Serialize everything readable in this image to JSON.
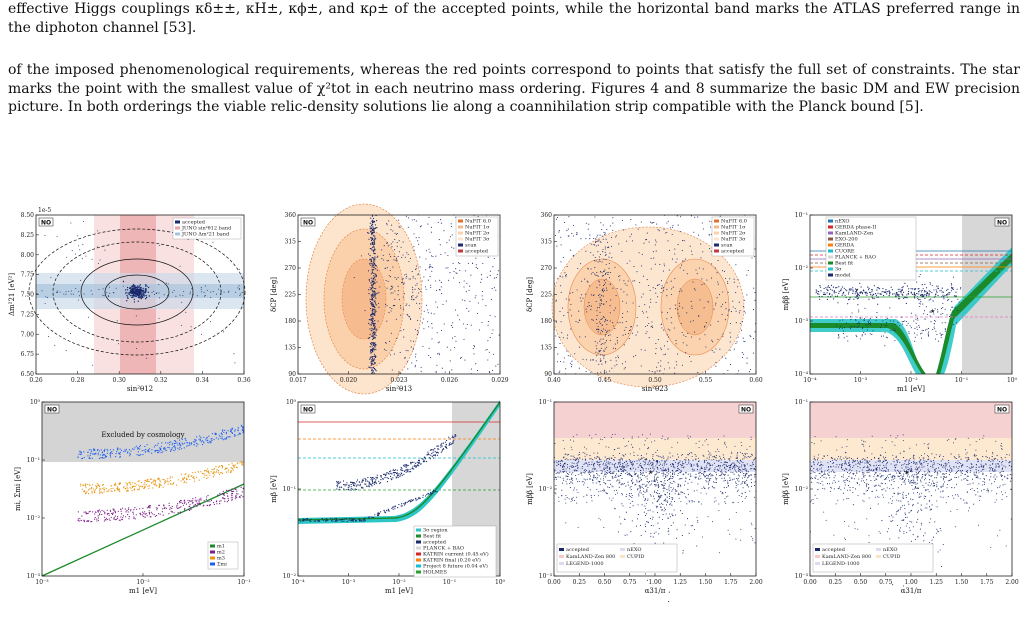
{
  "caption_text": "effective Higgs couplings κδ±±, κH±, κϕ±, and κρ± of the accepted points, while the horizontal band marks the ATLAS preferred range in the diphoton channel [53].",
  "body_text": "of the imposed phenomenological requirements, whereas the red points correspond to points that satisfy the full set of constraints. The star marks the point with the smallest value of χ²tot in each neutrino mass ordering. Figures 4 and 8 summarize the basic DM and EW precision picture. In both orderings the viable relic-density solutions lie along a coannihilation strip compatible with the Planck bound [5].",
  "figures": {
    "p1": {
      "tag": "NO",
      "scale": "1e-5",
      "xlabel": "sin²θ12",
      "ylabel": "Δm²21 [eV²]",
      "xticks": [
        "0.26",
        "0.28",
        "0.30",
        "0.32",
        "0.34",
        "0.36"
      ],
      "yticks": [
        "6.50",
        "6.75",
        "7.00",
        "7.25",
        "7.50",
        "7.75",
        "8.00",
        "8.25",
        "8.50"
      ],
      "legend": [
        "accepted",
        "JUNO sin²θ12 band",
        "JUNO Δm²21 band"
      ]
    },
    "p2": {
      "tag": "NO",
      "xlabel": "sin²θ13",
      "ylabel": "δCP [deg]",
      "xticks": [
        "0.017",
        "0.020",
        "0.023",
        "0.026",
        "0.029"
      ],
      "yticks": [
        "90",
        "135",
        "180",
        "225",
        "270",
        "315",
        "360"
      ],
      "legend": [
        "NuFIT 6.0",
        "NuFIT 1σ",
        "NuFIT 2σ",
        "NuFIT 3σ",
        "scan",
        "accepted"
      ]
    },
    "p3": {
      "xlabel": "sin²θ23",
      "ylabel": "δCP [deg]",
      "xticks": [
        "0.40",
        "0.45",
        "0.50",
        "0.55",
        "0.60"
      ],
      "yticks": [
        "90",
        "135",
        "180",
        "225",
        "270",
        "315",
        "360"
      ],
      "legend": [
        "NuFIT 6.0",
        "NuFIT 1σ",
        "NuFIT 2σ",
        "NuFIT 3σ",
        "scan",
        "accepted"
      ]
    },
    "p4": {
      "tag": "NO",
      "xlabel": "m1 [eV]",
      "ylabel": "mββ [eV]",
      "xticks": [
        "10⁻⁴",
        "10⁻³",
        "10⁻²",
        "10⁻¹",
        "10⁰"
      ],
      "yticks": [
        "10⁻⁴",
        "10⁻³",
        "10⁻²",
        "10⁻¹"
      ],
      "legend": [
        "nEXO",
        "GERDA phase-II",
        "KamLAND-Zen",
        "EXO-200",
        "GERDA",
        "CUORE",
        "PLANCK + BAO",
        "Best fit",
        "3σ",
        "model"
      ]
    },
    "p5": {
      "tag": "NO",
      "xlabel": "m1 [eV]",
      "ylabel": "mi, Σmi [eV]",
      "xticks": [
        "10⁻³",
        "10⁻²",
        "10⁻¹"
      ],
      "yticks": [
        "10⁻³",
        "10⁻²",
        "10⁻¹",
        "10⁰"
      ],
      "excluded_label": "Excluded by cosmology",
      "legend": [
        "m1",
        "m2",
        "m3",
        "Σmi"
      ]
    },
    "p6": {
      "tag": "NO",
      "xlabel": "m1 [eV]",
      "ylabel": "mβ [eV]",
      "xticks": [
        "10⁻⁴",
        "10⁻³",
        "10⁻²",
        "10⁻¹",
        "10⁰"
      ],
      "yticks": [
        "10⁻²",
        "10⁻¹",
        "10⁰"
      ],
      "legend": [
        "3σ region",
        "Best fit",
        "accepted",
        "PLANCK + BAO",
        "KATRIN current (0.45 eV)",
        "KATRIN final (0.20 eV)",
        "Project 8 future (0.04 eV)",
        "HOLMES"
      ]
    },
    "p7": {
      "tag": "NO",
      "xlabel": "α31/π",
      "ylabel": "mββ [eV]",
      "xticks": [
        "0.00",
        "0.25",
        "0.50",
        "0.75",
        "1.00",
        "1.25",
        "1.50",
        "1.75",
        "2.00"
      ],
      "yticks": [
        "10⁻³",
        "10⁻²",
        "10⁻¹"
      ],
      "legend": [
        "accepted",
        "KamLAND-Zen 800",
        "LEGEND-1000",
        "nEXO",
        "CUPID"
      ]
    },
    "p8": {
      "tag": "NO",
      "xlabel": "α31/π",
      "ylabel": "mββ [eV]",
      "xticks": [
        "0.00",
        "0.25",
        "0.50",
        "0.75",
        "1.00",
        "1.25",
        "1.50",
        "1.75",
        "2.00"
      ],
      "yticks": [
        "10⁻³",
        "10⁻²",
        "10⁻¹"
      ],
      "legend": [
        "accepted",
        "KamLAND-Zen 800",
        "LEGEND-1000",
        "nEXO",
        "CUPID"
      ]
    }
  }
}
